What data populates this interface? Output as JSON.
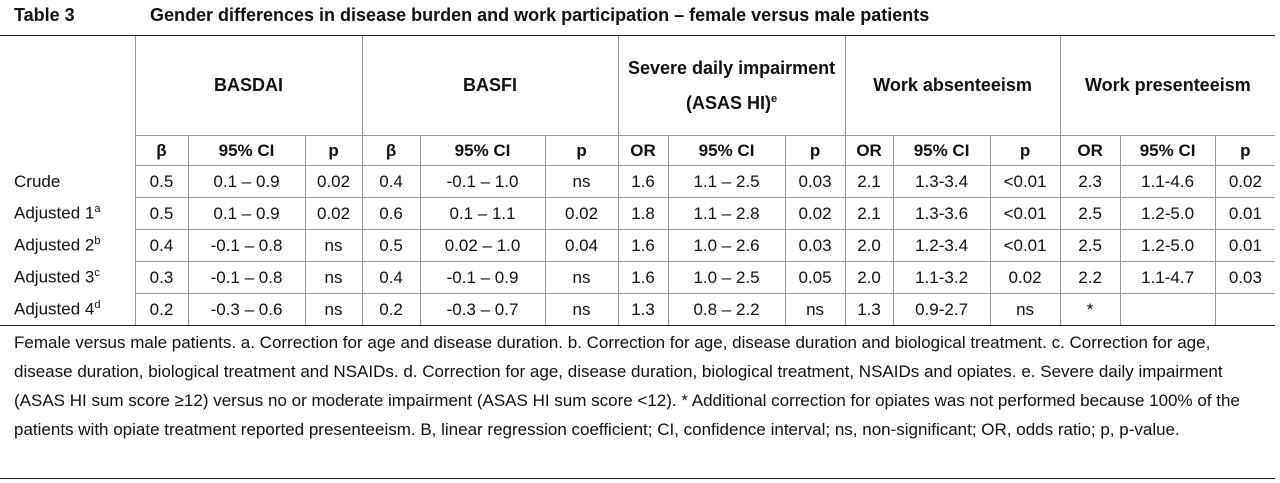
{
  "title": {
    "label": "Table 3",
    "text": "Gender differences in disease burden and work participation – female versus male patients"
  },
  "table": {
    "groups": [
      {
        "text": "BASDAI"
      },
      {
        "text": "BASFI"
      },
      {
        "text": "Severe daily impairment (ASAS HI)",
        "sup": "e"
      },
      {
        "text": "Work absenteeism"
      },
      {
        "text": "Work presenteeism"
      }
    ],
    "subheaders": [
      "β",
      "95% CI",
      "p",
      "β",
      "95% CI",
      "p",
      "OR",
      "95% CI",
      "p",
      "OR",
      "95% CI",
      "p",
      "OR",
      "95% CI",
      "p"
    ],
    "rows": [
      {
        "label": "Crude",
        "cells": [
          "0.5",
          "0.1 – 0.9",
          "0.02",
          "0.4",
          "-0.1 – 1.0",
          "ns",
          "1.6",
          "1.1 – 2.5",
          "0.03",
          "2.1",
          "1.3-3.4",
          "<0.01",
          "2.3",
          "1.1-4.6",
          "0.02"
        ]
      },
      {
        "label": "Adjusted 1",
        "sup": "a",
        "cells": [
          "0.5",
          "0.1 – 0.9",
          "0.02",
          "0.6",
          "0.1 – 1.1",
          "0.02",
          "1.8",
          "1.1 – 2.8",
          "0.02",
          "2.1",
          "1.3-3.6",
          "<0.01",
          "2.5",
          "1.2-5.0",
          "0.01"
        ]
      },
      {
        "label": "Adjusted 2",
        "sup": "b",
        "cells": [
          "0.4",
          "-0.1 – 0.8",
          "ns",
          "0.5",
          "0.02 – 1.0",
          "0.04",
          "1.6",
          "1.0 – 2.6",
          "0.03",
          "2.0",
          "1.2-3.4",
          "<0.01",
          "2.5",
          "1.2-5.0",
          "0.01"
        ]
      },
      {
        "label": "Adjusted 3",
        "sup": "c",
        "cells": [
          "0.3",
          "-0.1 – 0.8",
          "ns",
          "0.4",
          "-0.1 – 0.9",
          "ns",
          "1.6",
          "1.0 – 2.5",
          "0.05",
          "2.0",
          "1.1-3.2",
          "0.02",
          "2.2",
          "1.1-4.7",
          "0.03"
        ]
      },
      {
        "label": "Adjusted 4",
        "sup": "d",
        "cells": [
          "0.2",
          "-0.3 – 0.6",
          "ns",
          "0.2",
          "-0.3 – 0.7",
          "ns",
          "1.3",
          "0.8 – 2.2",
          "ns",
          "1.3",
          "0.9-2.7",
          "ns",
          "*"
        ]
      }
    ]
  },
  "footnote": "Female versus male patients. a. Correction for age and disease duration. b. Correction for age, disease duration and biological treatment. c. Correction for age, disease duration, biological treatment and NSAIDs. d. Correction for age, disease duration, biological treatment, NSAIDs and opiates. e. Severe daily impairment (ASAS HI sum score ≥12) versus no or moderate impairment (ASAS HI sum score <12). * Additional correction for opiates was not performed because 100% of the patients with opiate treatment reported presenteeism. B, linear regression coefficient; CI, confidence interval; ns, non-significant; OR, odds ratio; p, p-value."
}
